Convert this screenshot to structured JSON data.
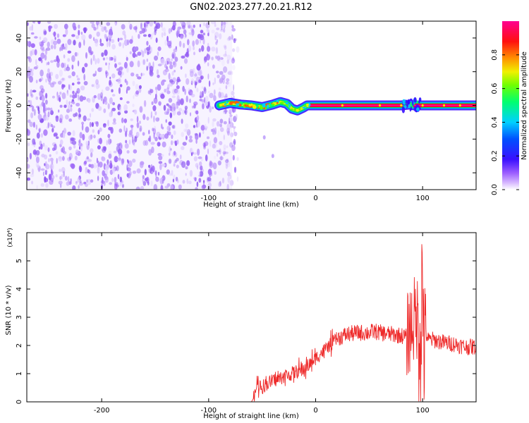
{
  "title": "GN02.2023.277.20.21.R12",
  "colors": {
    "snr_line": "#ee2a2a",
    "spectrogram_low": "#7a2cf5",
    "axis": "#000000"
  },
  "chart_data": [
    {
      "type": "heatmap",
      "name_hint": "spectrogram",
      "xlabel": "Height of straight line (km)",
      "ylabel": "Frequency (Hz)",
      "xlim": [
        -270,
        150
      ],
      "ylim": [
        -50,
        50
      ],
      "xticks": [
        -200,
        -100,
        0,
        100
      ],
      "xtick_labels": [
        "-200",
        "-100",
        "0",
        "100"
      ],
      "yticks": [
        -40,
        -20,
        0,
        20,
        40
      ],
      "ytick_labels": [
        "-40",
        "-20",
        "0",
        "20",
        "40"
      ],
      "colorbar": {
        "label": "Normalized spectral amplitude",
        "range": [
          0,
          1
        ],
        "ticks": [
          0.0,
          0.2,
          0.4,
          0.6,
          0.8
        ],
        "tick_labels": [
          "0.0",
          "0.2",
          "0.4",
          "0.6",
          "0.8"
        ],
        "colors": [
          "#ffffff",
          "#c9a8ff",
          "#7a2cf5",
          "#2a10ff",
          "#00c8ff",
          "#00ff60",
          "#f0f000",
          "#ff8000",
          "#ff0030",
          "#ff0090"
        ]
      },
      "noise_region_x": [
        -270,
        -78
      ],
      "signal_track": {
        "x": [
          -90,
          -80,
          -70,
          -60,
          -50,
          -40,
          -33,
          -27,
          -22,
          -17,
          -12,
          -8,
          0,
          20,
          40,
          60,
          80,
          88,
          92,
          96,
          110,
          130,
          150
        ],
        "freq": [
          0,
          1.5,
          0.5,
          0,
          -1,
          0.5,
          2,
          1,
          -2,
          -3,
          -1.5,
          0,
          0,
          0,
          0,
          0,
          0,
          0.5,
          0,
          0,
          0,
          0,
          0
        ]
      },
      "grid": false
    },
    {
      "type": "line",
      "name_hint": "snr",
      "xlabel": "Height of straight line (km)",
      "ylabel": "SNR (10 * v/v)",
      "y_multiplier": "(x10⁴)",
      "xlim": [
        -270,
        150
      ],
      "ylim": [
        0,
        6
      ],
      "xticks": [
        -200,
        -100,
        0,
        100
      ],
      "xtick_labels": [
        "-200",
        "-100",
        "0",
        "100"
      ],
      "yticks": [
        0,
        1,
        2,
        3,
        4,
        5
      ],
      "ytick_labels": [
        "0",
        "1",
        "2",
        "3",
        "4",
        "5"
      ],
      "grid": false,
      "series": [
        {
          "x": [
            -270,
            -60,
            -57,
            -55,
            -50,
            -45,
            -40,
            -35,
            -30,
            -25,
            -20,
            -15,
            -10,
            -5,
            0,
            10,
            20,
            30,
            40,
            50,
            55,
            60,
            70,
            80,
            85,
            90,
            95,
            97,
            100,
            102,
            105,
            110,
            120,
            130,
            140,
            150
          ],
          "y": [
            0,
            0,
            0.2,
            0.6,
            0.55,
            0.65,
            0.75,
            0.8,
            0.9,
            0.95,
            1.05,
            1.1,
            1.2,
            1.35,
            1.55,
            1.9,
            2.25,
            2.4,
            2.45,
            2.45,
            2.5,
            2.45,
            2.4,
            2.35,
            2.3,
            2.8,
            3.0,
            2.9,
            3.5,
            2.6,
            2.2,
            2.2,
            2.1,
            2.05,
            1.95,
            1.95
          ]
        }
      ]
    }
  ]
}
